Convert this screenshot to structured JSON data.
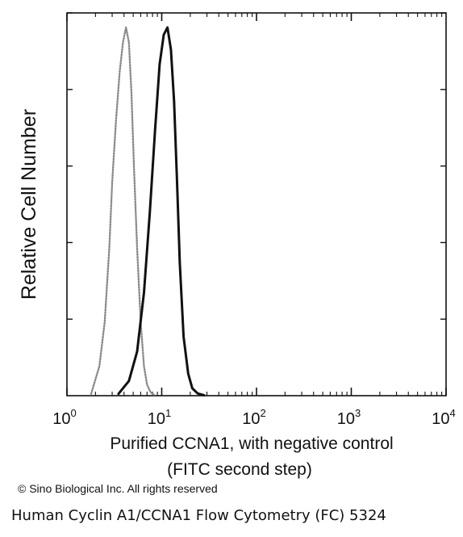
{
  "chart_data": {
    "type": "line",
    "title": "",
    "xlabel_line1": "Purified CCNA1, with negative control",
    "xlabel_line2": "(FITC second step)",
    "ylabel": "Relative Cell Number",
    "x_scale": "log",
    "xlim": [
      1,
      10000
    ],
    "ylim": [
      0,
      100
    ],
    "x_ticks": [
      {
        "base": "10",
        "exp": "0"
      },
      {
        "base": "10",
        "exp": "1"
      },
      {
        "base": "10",
        "exp": "2"
      },
      {
        "base": "10",
        "exp": "3"
      },
      {
        "base": "10",
        "exp": "4"
      }
    ],
    "grid": false,
    "series": [
      {
        "style": "dotted",
        "color": "#8a8a8a",
        "x": [
          1.8,
          2.2,
          2.5,
          2.8,
          3.0,
          3.3,
          3.6,
          3.9,
          4.2,
          4.5,
          4.8,
          5.1,
          5.5,
          6.0,
          6.5,
          7.0,
          7.6,
          8.2
        ],
        "y": [
          0.5,
          8,
          20,
          40,
          58,
          75,
          88,
          96,
          100,
          96,
          82,
          62,
          40,
          20,
          8,
          3,
          1,
          0.3
        ]
      },
      {
        "style": "solid",
        "color": "#111111",
        "x": [
          3.5,
          4.5,
          5.5,
          6.5,
          7.5,
          8.5,
          9.5,
          10.5,
          11.5,
          12.5,
          13.5,
          14.5,
          15.5,
          17.0,
          19.0,
          21.0,
          24.0,
          28.0
        ],
        "y": [
          0.5,
          4,
          12,
          28,
          50,
          72,
          90,
          98,
          100,
          94,
          80,
          58,
          36,
          16,
          6,
          2,
          0.6,
          0.1
        ]
      }
    ]
  },
  "copyright": "© Sino Biological Inc. All rights reserved",
  "caption": "Human Cyclin A1/CCNA1 Flow Cytometry (FC) 5324"
}
